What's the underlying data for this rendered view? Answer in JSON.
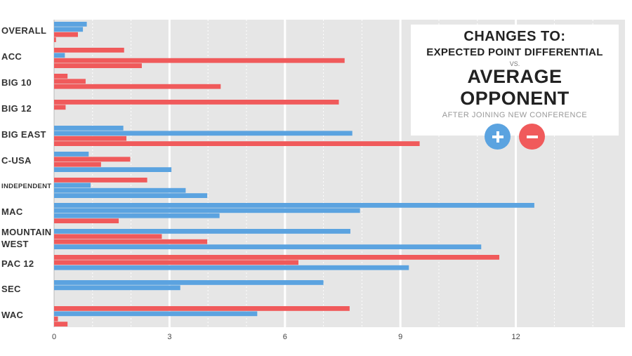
{
  "legend": {
    "title": "CHANGES TO:",
    "subtitle": "EXPECTED POINT DIFFERENTIAL",
    "vs": "VS.",
    "main": "AVERAGE OPPONENT",
    "note": "AFTER JOINING NEW CONFERENCE",
    "positive_icon": "plus-icon",
    "negative_icon": "minus-icon"
  },
  "chart_data": {
    "type": "bar",
    "orientation": "horizontal",
    "colors": {
      "positive": "#5ba3e0",
      "negative": "#f05a5b",
      "background": "#e6e6e6"
    },
    "xlim": [
      0,
      15
    ],
    "xticks": [
      "0",
      "3",
      "6",
      "9",
      "12"
    ],
    "categories": [
      {
        "label": "OVERALL",
        "bars": [
          {
            "v": 0.85,
            "s": "positive"
          },
          {
            "v": 0.75,
            "s": "positive"
          },
          {
            "v": 0.62,
            "s": "negative"
          },
          {
            "v": 0.05,
            "s": "negative"
          }
        ]
      },
      {
        "label": "ACC",
        "bars": [
          {
            "v": 1.82,
            "s": "negative"
          },
          {
            "v": 0.28,
            "s": "positive"
          },
          {
            "v": 7.55,
            "s": "negative"
          },
          {
            "v": 2.28,
            "s": "negative"
          }
        ]
      },
      {
        "label": "BIG 10",
        "bars": [
          {
            "v": 0.35,
            "s": "negative"
          },
          {
            "v": 0.82,
            "s": "negative"
          },
          {
            "v": 4.33,
            "s": "negative"
          }
        ]
      },
      {
        "label": "BIG 12",
        "bars": [
          {
            "v": 7.4,
            "s": "negative"
          },
          {
            "v": 0.3,
            "s": "negative"
          }
        ]
      },
      {
        "label": "BIG EAST",
        "bars": [
          {
            "v": 1.8,
            "s": "positive"
          },
          {
            "v": 7.75,
            "s": "positive"
          },
          {
            "v": 1.88,
            "s": "negative"
          },
          {
            "v": 9.5,
            "s": "negative"
          }
        ]
      },
      {
        "label": "C-USA",
        "bars": [
          {
            "v": 0.9,
            "s": "positive"
          },
          {
            "v": 1.98,
            "s": "negative"
          },
          {
            "v": 1.22,
            "s": "negative"
          },
          {
            "v": 3.05,
            "s": "positive"
          }
        ]
      },
      {
        "label": "INDEPENDENT",
        "small": true,
        "bars": [
          {
            "v": 2.42,
            "s": "negative"
          },
          {
            "v": 0.95,
            "s": "positive"
          },
          {
            "v": 3.42,
            "s": "positive"
          },
          {
            "v": 3.98,
            "s": "positive"
          }
        ]
      },
      {
        "label": "MAC",
        "bars": [
          {
            "v": 12.48,
            "s": "positive"
          },
          {
            "v": 7.95,
            "s": "positive"
          },
          {
            "v": 4.3,
            "s": "positive"
          },
          {
            "v": 1.68,
            "s": "negative"
          }
        ]
      },
      {
        "label": "MOUNTAIN\nWEST",
        "bars": [
          {
            "v": 7.7,
            "s": "positive"
          },
          {
            "v": 2.8,
            "s": "negative"
          },
          {
            "v": 3.98,
            "s": "negative"
          },
          {
            "v": 11.1,
            "s": "positive"
          }
        ]
      },
      {
        "label": "PAC 12",
        "bars": [
          {
            "v": 11.57,
            "s": "negative"
          },
          {
            "v": 6.35,
            "s": "negative"
          },
          {
            "v": 9.22,
            "s": "positive"
          }
        ]
      },
      {
        "label": "SEC",
        "bars": [
          {
            "v": 7.0,
            "s": "positive"
          },
          {
            "v": 3.28,
            "s": "positive"
          }
        ]
      },
      {
        "label": "WAC",
        "bars": [
          {
            "v": 7.68,
            "s": "negative"
          },
          {
            "v": 5.28,
            "s": "positive"
          },
          {
            "v": 0.1,
            "s": "negative"
          },
          {
            "v": 0.35,
            "s": "negative"
          }
        ]
      }
    ]
  }
}
